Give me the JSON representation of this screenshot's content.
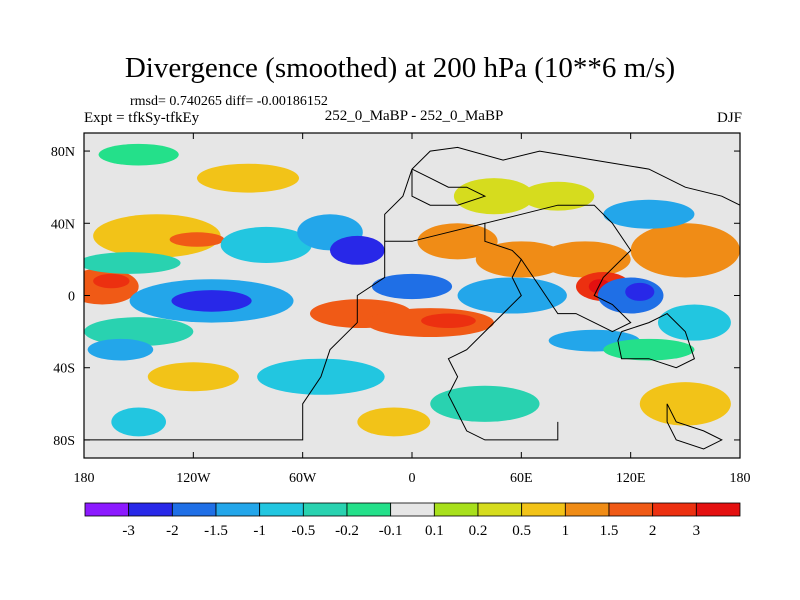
{
  "title": "Divergence (smoothed) at 200 hPa (10**6 m/s)",
  "stats": "rmsd= 0.740265 diff= -0.00186152",
  "experiment": "Expt = tfkSy-tfkEy",
  "center_label": "252_0_MaBP - 252_0_MaBP",
  "season": "DJF",
  "chart_data": {
    "type": "heatmap",
    "title": "Divergence (smoothed) at 200 hPa (10**6 m/s)",
    "x_ticks": [
      {
        "value": -180,
        "label": "180"
      },
      {
        "value": -120,
        "label": "120W"
      },
      {
        "value": -60,
        "label": "60W"
      },
      {
        "value": 0,
        "label": "0"
      },
      {
        "value": 60,
        "label": "60E"
      },
      {
        "value": 120,
        "label": "120E"
      },
      {
        "value": 180,
        "label": "180"
      }
    ],
    "y_ticks": [
      {
        "value": 80,
        "label": "80N"
      },
      {
        "value": 40,
        "label": "40N"
      },
      {
        "value": 0,
        "label": "0"
      },
      {
        "value": -40,
        "label": "40S"
      },
      {
        "value": -80,
        "label": "80S"
      }
    ],
    "xlim": [
      -180,
      180
    ],
    "ylim": [
      -90,
      90
    ],
    "colorbar": {
      "labels": [
        "-3",
        "-2",
        "-1.5",
        "-1",
        "-0.5",
        "-0.2",
        "-0.1",
        "0.1",
        "0.2",
        "0.5",
        "1",
        "1.5",
        "2",
        "3"
      ],
      "colors": [
        "#8c1aff",
        "#2828e8",
        "#1f6fe6",
        "#23a6ea",
        "#22c6e0",
        "#29d2b0",
        "#24e08a",
        "#e6e6e6",
        "#a8e01c",
        "#d6dc1e",
        "#f2c318",
        "#f08c16",
        "#f05a16",
        "#ec3010",
        "#e41010"
      ]
    },
    "blobs": [
      {
        "lon": -170,
        "lat": 5,
        "rx": 20,
        "ry": 10,
        "level": 12
      },
      {
        "lon": -165,
        "lat": 8,
        "rx": 10,
        "ry": 4,
        "level": 13
      },
      {
        "lon": -140,
        "lat": 33,
        "rx": 35,
        "ry": 12,
        "level": 10
      },
      {
        "lon": -118,
        "lat": 31,
        "rx": 15,
        "ry": 4,
        "level": 12
      },
      {
        "lon": -155,
        "lat": 18,
        "rx": 28,
        "ry": 6,
        "level": 5
      },
      {
        "lon": -110,
        "lat": -3,
        "rx": 45,
        "ry": 12,
        "level": 3
      },
      {
        "lon": -110,
        "lat": -3,
        "rx": 22,
        "ry": 6,
        "level": 1
      },
      {
        "lon": -150,
        "lat": -20,
        "rx": 30,
        "ry": 8,
        "level": 5
      },
      {
        "lon": -160,
        "lat": -30,
        "rx": 18,
        "ry": 6,
        "level": 3
      },
      {
        "lon": -90,
        "lat": 65,
        "rx": 28,
        "ry": 8,
        "level": 10
      },
      {
        "lon": -150,
        "lat": 78,
        "rx": 22,
        "ry": 6,
        "level": 6
      },
      {
        "lon": -80,
        "lat": 28,
        "rx": 25,
        "ry": 10,
        "level": 4
      },
      {
        "lon": -45,
        "lat": 35,
        "rx": 18,
        "ry": 10,
        "level": 3
      },
      {
        "lon": -30,
        "lat": 25,
        "rx": 15,
        "ry": 8,
        "level": 1
      },
      {
        "lon": -28,
        "lat": -10,
        "rx": 28,
        "ry": 8,
        "level": 12
      },
      {
        "lon": 10,
        "lat": -15,
        "rx": 35,
        "ry": 8,
        "level": 12
      },
      {
        "lon": 20,
        "lat": -14,
        "rx": 15,
        "ry": 4,
        "level": 13
      },
      {
        "lon": 0,
        "lat": 5,
        "rx": 22,
        "ry": 7,
        "level": 2
      },
      {
        "lon": 25,
        "lat": 30,
        "rx": 22,
        "ry": 10,
        "level": 11
      },
      {
        "lon": 45,
        "lat": 55,
        "rx": 22,
        "ry": 10,
        "level": 9
      },
      {
        "lon": 80,
        "lat": 55,
        "rx": 20,
        "ry": 8,
        "level": 9
      },
      {
        "lon": 60,
        "lat": 20,
        "rx": 25,
        "ry": 10,
        "level": 11
      },
      {
        "lon": 55,
        "lat": 0,
        "rx": 30,
        "ry": 10,
        "level": 3
      },
      {
        "lon": 95,
        "lat": 20,
        "rx": 25,
        "ry": 10,
        "level": 11
      },
      {
        "lon": 105,
        "lat": 5,
        "rx": 15,
        "ry": 8,
        "level": 13
      },
      {
        "lon": 103,
        "lat": 5,
        "rx": 6,
        "ry": 4,
        "level": 14
      },
      {
        "lon": 120,
        "lat": 0,
        "rx": 18,
        "ry": 10,
        "level": 2
      },
      {
        "lon": 125,
        "lat": 2,
        "rx": 8,
        "ry": 5,
        "level": 1
      },
      {
        "lon": 150,
        "lat": 25,
        "rx": 30,
        "ry": 15,
        "level": 11
      },
      {
        "lon": 155,
        "lat": -15,
        "rx": 20,
        "ry": 10,
        "level": 4
      },
      {
        "lon": -50,
        "lat": -45,
        "rx": 35,
        "ry": 10,
        "level": 4
      },
      {
        "lon": -120,
        "lat": -45,
        "rx": 25,
        "ry": 8,
        "level": 10
      },
      {
        "lon": 40,
        "lat": -60,
        "rx": 30,
        "ry": 10,
        "level": 5
      },
      {
        "lon": 150,
        "lat": -60,
        "rx": 25,
        "ry": 12,
        "level": 10
      },
      {
        "lon": -10,
        "lat": -70,
        "rx": 20,
        "ry": 8,
        "level": 10
      },
      {
        "lon": -150,
        "lat": -70,
        "rx": 15,
        "ry": 8,
        "level": 4
      },
      {
        "lon": 130,
        "lat": 45,
        "rx": 25,
        "ry": 8,
        "level": 3
      },
      {
        "lon": 100,
        "lat": -25,
        "rx": 25,
        "ry": 6,
        "level": 3
      },
      {
        "lon": 130,
        "lat": -30,
        "rx": 25,
        "ry": 6,
        "level": 6
      }
    ]
  }
}
